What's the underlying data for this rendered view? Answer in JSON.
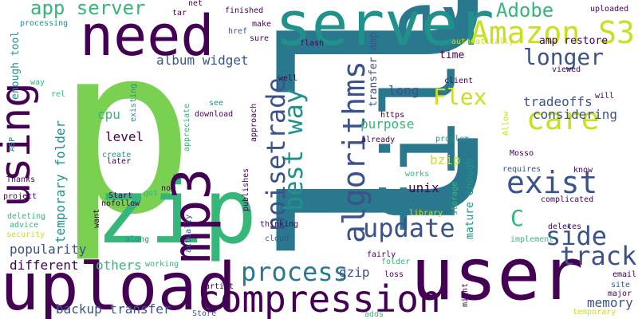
{
  "word_cloud": {
    "colors": {
      "purple": "#440154",
      "indigo": "#3b528b",
      "teal": "#21918c",
      "sea": "#2a788e",
      "green": "#35b779",
      "lime": "#7ad151",
      "yellow": "#c8e020"
    },
    "words": [
      {
        "text": "ll",
        "color": "sea"
      },
      {
        "text": "p",
        "color": "lime"
      },
      {
        "text": "file",
        "color": "sea"
      },
      {
        "text": "zip",
        "color": "green"
      },
      {
        "text": "user",
        "color": "purple"
      },
      {
        "text": "upload",
        "color": "purple"
      },
      {
        "text": "server",
        "color": "teal"
      },
      {
        "text": "need",
        "color": "purple"
      },
      {
        "text": "mp3",
        "color": "purple"
      },
      {
        "text": "compression",
        "color": "purple"
      },
      {
        "text": "using",
        "color": "purple"
      },
      {
        "text": "Amazon S3",
        "color": "yellow"
      },
      {
        "text": "algorithms",
        "color": "indigo"
      },
      {
        "text": "exist",
        "color": "indigo"
      },
      {
        "text": "care",
        "color": "yellow"
      },
      {
        "text": "update",
        "color": "indigo"
      },
      {
        "text": "noisetrade",
        "color": "indigo"
      },
      {
        "text": "best way",
        "color": "teal"
      },
      {
        "text": "process",
        "color": "sea"
      },
      {
        "text": "track",
        "color": "indigo"
      },
      {
        "text": "side",
        "color": "indigo"
      },
      {
        "text": "longer",
        "color": "indigo"
      },
      {
        "text": "Flex",
        "color": "yellow"
      },
      {
        "text": "Adobe",
        "color": "green"
      },
      {
        "text": "C",
        "color": "green"
      },
      {
        "text": "app server",
        "color": "green"
      },
      {
        "text": "popularity",
        "color": "indigo"
      },
      {
        "text": "album widget",
        "color": "indigo"
      },
      {
        "text": "temporary folder",
        "color": "teal"
      },
      {
        "text": "tradeoffs",
        "color": "indigo"
      },
      {
        "text": "considering",
        "color": "indigo"
      },
      {
        "text": "memory",
        "color": "indigo"
      },
      {
        "text": "different",
        "color": "purple"
      },
      {
        "text": "backup transfer",
        "color": "indigo"
      },
      {
        "text": "others",
        "color": "green"
      },
      {
        "text": "purpose",
        "color": "green"
      },
      {
        "text": "cpu",
        "color": "green"
      },
      {
        "text": "level",
        "color": "purple"
      },
      {
        "text": "long",
        "color": "indigo"
      },
      {
        "text": "unix",
        "color": "purple"
      },
      {
        "text": "bzip",
        "color": "yellow"
      },
      {
        "text": "gzip",
        "color": "indigo"
      },
      {
        "text": "transfer amp",
        "color": "indigo"
      },
      {
        "text": "mature enough",
        "color": "teal"
      },
      {
        "text": "time",
        "color": "purple"
      },
      {
        "text": "amp restore",
        "color": "purple"
      },
      {
        "text": "enough tool",
        "color": "teal"
      },
      {
        "text": "uploaded",
        "color": "purple"
      },
      {
        "text": "finished",
        "color": "purple"
      },
      {
        "text": "processing",
        "color": "teal"
      },
      {
        "text": "tar",
        "color": "purple"
      },
      {
        "text": "net",
        "color": "purple"
      },
      {
        "text": "make",
        "color": "purple"
      },
      {
        "text": "href",
        "color": "indigo"
      },
      {
        "text": "sure",
        "color": "purple"
      },
      {
        "text": "flash",
        "color": "purple"
      },
      {
        "text": "automatically",
        "color": "yellow"
      },
      {
        "text": "viewed",
        "color": "purple"
      },
      {
        "text": "will",
        "color": "purple"
      },
      {
        "text": "way",
        "color": "green"
      },
      {
        "text": "rel",
        "color": "green"
      },
      {
        "text": "existing",
        "color": "teal"
      },
      {
        "text": "see",
        "color": "teal"
      },
      {
        "text": "download",
        "color": "purple"
      },
      {
        "text": "approach",
        "color": "purple"
      },
      {
        "text": "appreciate",
        "color": "green"
      },
      {
        "text": "well",
        "color": "purple"
      },
      {
        "text": "client",
        "color": "purple"
      },
      {
        "text": "https",
        "color": "purple"
      },
      {
        "text": "already",
        "color": "purple"
      },
      {
        "text": "problem",
        "color": "teal"
      },
      {
        "text": "Allow",
        "color": "yellow"
      },
      {
        "text": "Mosso",
        "color": "purple"
      },
      {
        "text": "requires",
        "color": "indigo"
      },
      {
        "text": "know",
        "color": "purple"
      },
      {
        "text": "complicated",
        "color": "purple"
      },
      {
        "text": "works",
        "color": "green"
      },
      {
        "text": "storage",
        "color": "green"
      },
      {
        "text": "library",
        "color": "yellow"
      },
      {
        "text": "deletes",
        "color": "purple"
      },
      {
        "text": "implement",
        "color": "green"
      },
      {
        "text": "create",
        "color": "teal"
      },
      {
        "text": "later",
        "color": "purple"
      },
      {
        "text": "Thanks",
        "color": "purple"
      },
      {
        "text": "ASP",
        "color": "teal"
      },
      {
        "text": "Start",
        "color": "purple"
      },
      {
        "text": "now",
        "color": "purple"
      },
      {
        "text": "got",
        "color": "green"
      },
      {
        "text": "nofollow",
        "color": "purple"
      },
      {
        "text": "publishes",
        "color": "purple"
      },
      {
        "text": "project",
        "color": "purple"
      },
      {
        "text": "deleting",
        "color": "green"
      },
      {
        "text": "advice",
        "color": "green"
      },
      {
        "text": "security",
        "color": "yellow"
      },
      {
        "text": "want",
        "color": "purple"
      },
      {
        "text": "thinking",
        "color": "purple"
      },
      {
        "text": "cloud",
        "color": "indigo"
      },
      {
        "text": "along",
        "color": "teal"
      },
      {
        "text": "actually",
        "color": "indigo"
      },
      {
        "text": "working",
        "color": "green"
      },
      {
        "text": "fairly",
        "color": "purple"
      },
      {
        "text": "folder",
        "color": "green"
      },
      {
        "text": "loss",
        "color": "purple"
      },
      {
        "text": "email",
        "color": "purple"
      },
      {
        "text": "site",
        "color": "indigo"
      },
      {
        "text": "major",
        "color": "purple"
      },
      {
        "text": "temporary",
        "color": "yellow"
      },
      {
        "text": "artist",
        "color": "purple"
      },
      {
        "text": "Store",
        "color": "indigo"
      },
      {
        "text": "adds",
        "color": "green"
      },
      {
        "text": "might",
        "color": "purple"
      }
    ]
  }
}
